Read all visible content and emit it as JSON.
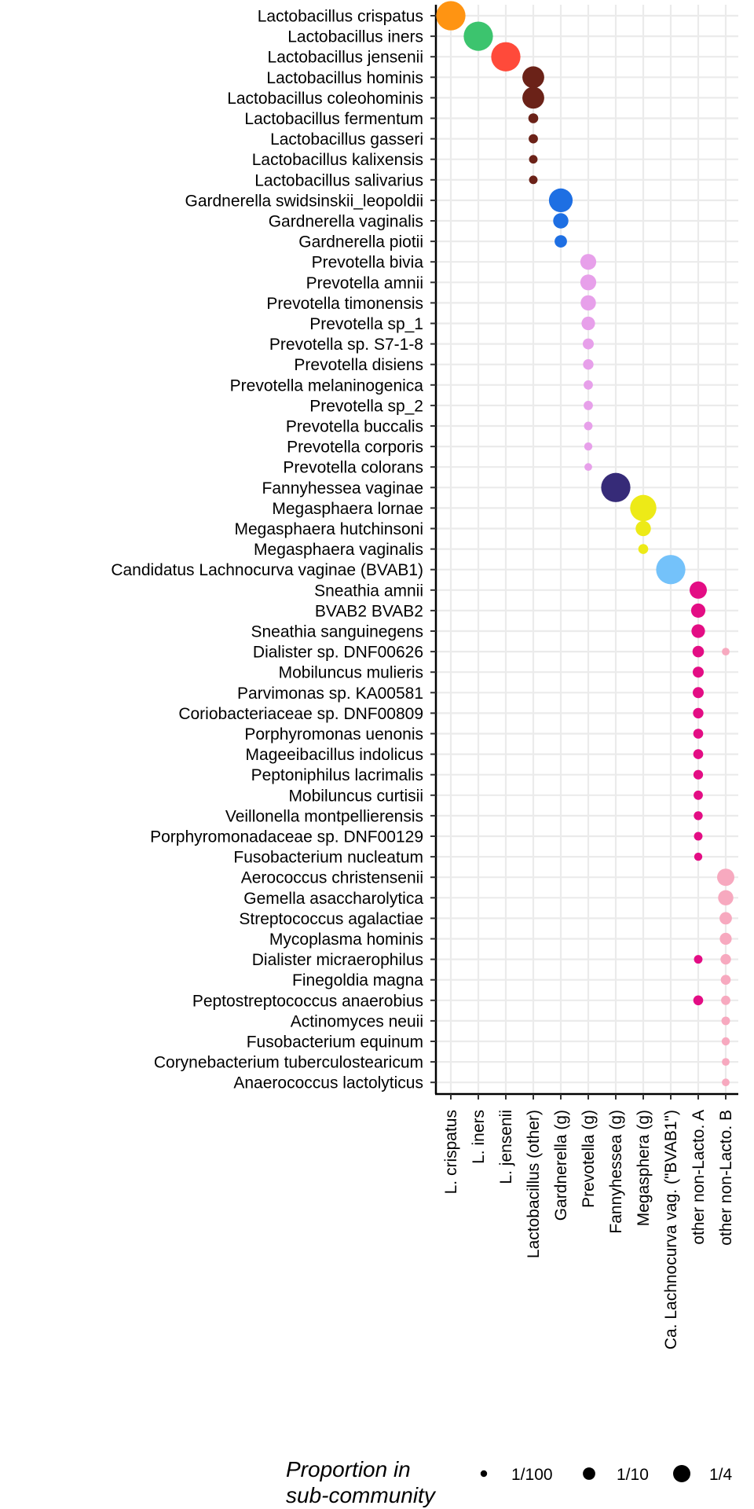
{
  "chart_data": {
    "type": "scatter",
    "description_type": "bubble matrix",
    "x_categories": [
      "L. crispatus",
      "L. iners",
      "L. jensenii",
      "Lactobacillus (other)",
      "Gardnerella (g)",
      "Prevotella (g)",
      "Fannyhessea (g)",
      "Megasphera (g)",
      "Ca. Lachnocurva vag. (\"BVAB1\")",
      "other non-Lacto. A",
      "other non-Lacto. B"
    ],
    "y_categories": [
      "Lactobacillus crispatus",
      "Lactobacillus iners",
      "Lactobacillus jensenii",
      "Lactobacillus hominis",
      "Lactobacillus coleohominis",
      "Lactobacillus fermentum",
      "Lactobacillus gasseri",
      "Lactobacillus kalixensis",
      "Lactobacillus salivarius",
      "Gardnerella swidsinskii_leopoldii",
      "Gardnerella vaginalis",
      "Gardnerella piotii",
      "Prevotella bivia",
      "Prevotella amnii",
      "Prevotella timonensis",
      "Prevotella sp_1",
      "Prevotella sp. S7-1-8",
      "Prevotella disiens",
      "Prevotella melaninogenica",
      "Prevotella sp_2",
      "Prevotella buccalis",
      "Prevotella corporis",
      "Prevotella colorans",
      "Fannyhessea vaginae",
      "Megasphaera lornae",
      "Megasphaera hutchinsoni",
      "Megasphaera vaginalis",
      "Candidatus Lachnocurva vaginae (BVAB1)",
      "Sneathia amnii",
      "BVAB2 BVAB2",
      "Sneathia sanguinegens",
      "Dialister sp. DNF00626",
      "Mobiluncus mulieris",
      "Parvimonas sp. KA00581",
      "Coriobacteriaceae sp. DNF00809",
      "Porphyromonas uenonis",
      "Mageeibacillus indolicus",
      "Peptoniphilus lacrimalis",
      "Mobiluncus curtisii",
      "Veillonella montpellierensis",
      "Porphyromonadaceae sp. DNF00129",
      "Fusobacterium nucleatum",
      "Aerococcus christensenii",
      "Gemella asaccharolytica",
      "Streptococcus agalactiae",
      "Mycoplasma hominis",
      "Dialister micraerophilus",
      "Finegoldia magna",
      "Peptostreptococcus anaerobius",
      "Actinomyces neuii",
      "Fusobacterium equinum",
      "Corynebacterium tuberculostearicum",
      "Anaerococcus lactolyticus"
    ],
    "colors": {
      "L. crispatus": "#FF9412",
      "L. iners": "#3CC46E",
      "L. jensenii": "#FF4A3A",
      "Lactobacillus (other)": "#6B2218",
      "Gardnerella (g)": "#1E6FE3",
      "Prevotella (g)": "#E7A0EA",
      "Fannyhessea (g)": "#362B78",
      "Megasphera (g)": "#EDEA17",
      "Ca. Lachnocurva vag. (\"BVAB1\")": "#74C2FA",
      "other non-Lacto. A": "#E30D84",
      "other non-Lacto. B": "#F7A9BF"
    },
    "points": [
      {
        "x": "L. crispatus",
        "y": "Lactobacillus crispatus",
        "value": 0.9
      },
      {
        "x": "L. iners",
        "y": "Lactobacillus iners",
        "value": 0.9
      },
      {
        "x": "L. jensenii",
        "y": "Lactobacillus jensenii",
        "value": 0.9
      },
      {
        "x": "Lactobacillus (other)",
        "y": "Lactobacillus hominis",
        "value": 0.45
      },
      {
        "x": "Lactobacillus (other)",
        "y": "Lactobacillus coleohominis",
        "value": 0.45
      },
      {
        "x": "Lactobacillus (other)",
        "y": "Lactobacillus fermentum",
        "value": 0.05
      },
      {
        "x": "Lactobacillus (other)",
        "y": "Lactobacillus gasseri",
        "value": 0.04
      },
      {
        "x": "Lactobacillus (other)",
        "y": "Lactobacillus kalixensis",
        "value": 0.03
      },
      {
        "x": "Lactobacillus (other)",
        "y": "Lactobacillus salivarius",
        "value": 0.03
      },
      {
        "x": "Gardnerella (g)",
        "y": "Gardnerella swidsinskii_leopoldii",
        "value": 0.55
      },
      {
        "x": "Gardnerella (g)",
        "y": "Gardnerella vaginalis",
        "value": 0.18
      },
      {
        "x": "Gardnerella (g)",
        "y": "Gardnerella piotii",
        "value": 0.1
      },
      {
        "x": "Prevotella (g)",
        "y": "Prevotella bivia",
        "value": 0.2
      },
      {
        "x": "Prevotella (g)",
        "y": "Prevotella amnii",
        "value": 0.2
      },
      {
        "x": "Prevotella (g)",
        "y": "Prevotella timonensis",
        "value": 0.18
      },
      {
        "x": "Prevotella (g)",
        "y": "Prevotella sp_1",
        "value": 0.13
      },
      {
        "x": "Prevotella (g)",
        "y": "Prevotella sp. S7-1-8",
        "value": 0.07
      },
      {
        "x": "Prevotella (g)",
        "y": "Prevotella disiens",
        "value": 0.06
      },
      {
        "x": "Prevotella (g)",
        "y": "Prevotella melaninogenica",
        "value": 0.04
      },
      {
        "x": "Prevotella (g)",
        "y": "Prevotella sp_2",
        "value": 0.04
      },
      {
        "x": "Prevotella (g)",
        "y": "Prevotella buccalis",
        "value": 0.03
      },
      {
        "x": "Prevotella (g)",
        "y": "Prevotella corporis",
        "value": 0.025
      },
      {
        "x": "Prevotella (g)",
        "y": "Prevotella colorans",
        "value": 0.02
      },
      {
        "x": "Fannyhessea (g)",
        "y": "Fannyhessea vaginae",
        "value": 0.9
      },
      {
        "x": "Megasphera (g)",
        "y": "Megasphaera lornae",
        "value": 0.7
      },
      {
        "x": "Megasphera (g)",
        "y": "Megasphaera hutchinsoni",
        "value": 0.18
      },
      {
        "x": "Megasphera (g)",
        "y": "Megasphaera vaginalis",
        "value": 0.05
      },
      {
        "x": "Ca. Lachnocurva vag. (\"BVAB1\")",
        "y": "Candidatus Lachnocurva vaginae (BVAB1)",
        "value": 0.9
      },
      {
        "x": "other non-Lacto. A",
        "y": "Sneathia amnii",
        "value": 0.25
      },
      {
        "x": "other non-Lacto. A",
        "y": "BVAB2 BVAB2",
        "value": 0.15
      },
      {
        "x": "other non-Lacto. A",
        "y": "Sneathia sanguinegens",
        "value": 0.13
      },
      {
        "x": "other non-Lacto. A",
        "y": "Dialister sp. DNF00626",
        "value": 0.08
      },
      {
        "x": "other non-Lacto. A",
        "y": "Mobiluncus mulieris",
        "value": 0.07
      },
      {
        "x": "other non-Lacto. A",
        "y": "Parvimonas sp. KA00581",
        "value": 0.07
      },
      {
        "x": "other non-Lacto. A",
        "y": "Coriobacteriaceae sp. DNF00809",
        "value": 0.06
      },
      {
        "x": "other non-Lacto. A",
        "y": "Porphyromonas uenonis",
        "value": 0.05
      },
      {
        "x": "other non-Lacto. A",
        "y": "Mageeibacillus indolicus",
        "value": 0.05
      },
      {
        "x": "other non-Lacto. A",
        "y": "Peptoniphilus lacrimalis",
        "value": 0.045
      },
      {
        "x": "other non-Lacto. A",
        "y": "Mobiluncus curtisii",
        "value": 0.04
      },
      {
        "x": "other non-Lacto. A",
        "y": "Veillonella montpellierensis",
        "value": 0.035
      },
      {
        "x": "other non-Lacto. A",
        "y": "Porphyromonadaceae sp. DNF00129",
        "value": 0.03
      },
      {
        "x": "other non-Lacto. A",
        "y": "Fusobacterium nucleatum",
        "value": 0.025
      },
      {
        "x": "other non-Lacto. A",
        "y": "Dialister micraerophilus",
        "value": 0.03
      },
      {
        "x": "other non-Lacto. A",
        "y": "Peptostreptococcus anaerobius",
        "value": 0.05
      },
      {
        "x": "other non-Lacto. B",
        "y": "Dialister sp. DNF00626",
        "value": 0.02
      },
      {
        "x": "other non-Lacto. B",
        "y": "Aerococcus christensenii",
        "value": 0.25
      },
      {
        "x": "other non-Lacto. B",
        "y": "Gemella asaccharolytica",
        "value": 0.18
      },
      {
        "x": "other non-Lacto. B",
        "y": "Streptococcus agalactiae",
        "value": 0.1
      },
      {
        "x": "other non-Lacto. B",
        "y": "Mycoplasma hominis",
        "value": 0.09
      },
      {
        "x": "other non-Lacto. B",
        "y": "Dialister micraerophilus",
        "value": 0.06
      },
      {
        "x": "other non-Lacto. B",
        "y": "Finegoldia magna",
        "value": 0.05
      },
      {
        "x": "other non-Lacto. B",
        "y": "Peptostreptococcus anaerobius",
        "value": 0.04
      },
      {
        "x": "other non-Lacto. B",
        "y": "Actinomyces neuii",
        "value": 0.03
      },
      {
        "x": "other non-Lacto. B",
        "y": "Fusobacterium equinum",
        "value": 0.025
      },
      {
        "x": "other non-Lacto. B",
        "y": "Corynebacterium tuberculostearicum",
        "value": 0.02
      },
      {
        "x": "other non-Lacto. B",
        "y": "Anaerococcus lactolyticus",
        "value": 0.02
      }
    ],
    "legend": {
      "title_line1": "Proportion in",
      "title_line2": "sub-community",
      "placement": "bottom",
      "entries": [
        {
          "label": "1/100",
          "value": 0.01
        },
        {
          "label": "1/10",
          "value": 0.1
        },
        {
          "label": "1/4",
          "value": 0.25
        }
      ]
    },
    "grid": true
  }
}
